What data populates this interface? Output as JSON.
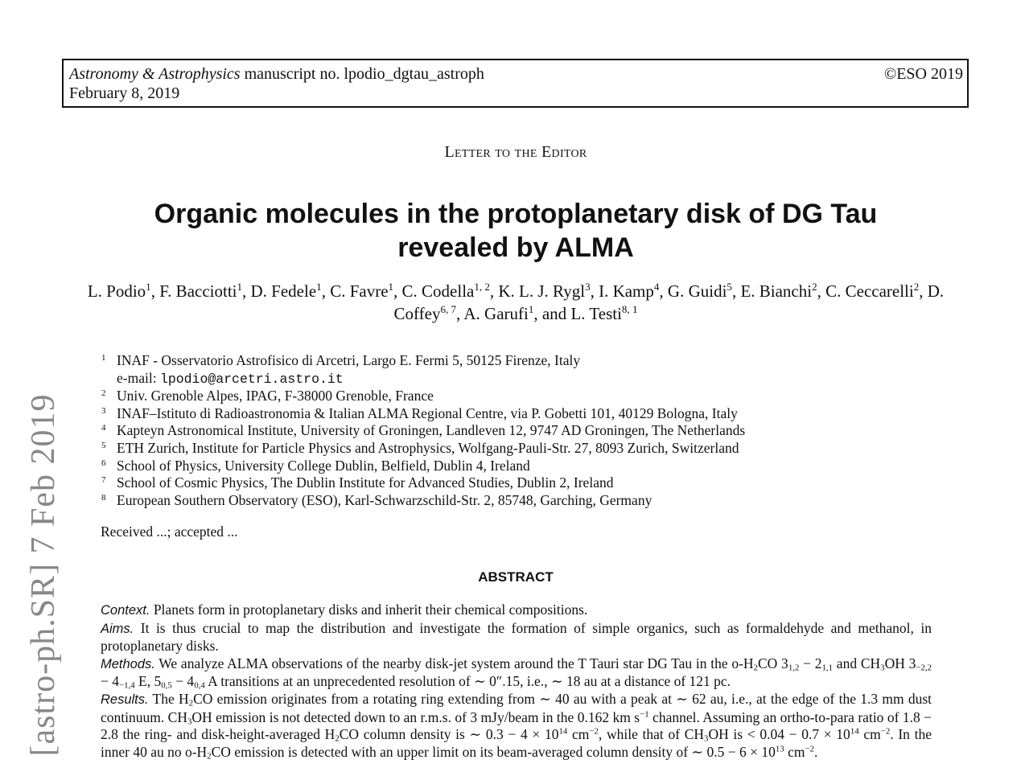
{
  "header": {
    "journal": "Astronomy & Astrophysics",
    "manuscript": " manuscript no. lpodio_dgtau_astroph",
    "date": "February 8, 2019",
    "copyright": "©ESO 2019"
  },
  "letter_label": "Letter to the Editor",
  "title": {
    "line1": "Organic molecules in the protoplanetary disk of DG Tau",
    "line2": "revealed by ALMA"
  },
  "authors": [
    {
      "name": "L. Podio",
      "aff": "1"
    },
    {
      "name": "F. Bacciotti",
      "aff": "1"
    },
    {
      "name": "D. Fedele",
      "aff": "1"
    },
    {
      "name": "C. Favre",
      "aff": "1"
    },
    {
      "name": "C. Codella",
      "aff": "1, 2"
    },
    {
      "name": "K. L. J. Rygl",
      "aff": "3"
    },
    {
      "name": "I. Kamp",
      "aff": "4"
    },
    {
      "name": "G. Guidi",
      "aff": "5"
    },
    {
      "name": "E. Bianchi",
      "aff": "2"
    },
    {
      "name": "C. Ceccarelli",
      "aff": "2"
    },
    {
      "name": "D. Coffey",
      "aff": "6, 7"
    },
    {
      "name": "A. Garufi",
      "aff": "1"
    },
    {
      "name": "L. Testi",
      "aff": "8, 1"
    }
  ],
  "author_connector": "and",
  "affiliations": [
    {
      "num": "1",
      "text": "INAF - Osservatorio Astrofisico di Arcetri, Largo E. Fermi 5, 50125 Firenze, Italy"
    },
    {
      "num": "",
      "email_label": "e-mail: ",
      "email": "lpodio@arcetri.astro.it"
    },
    {
      "num": "2",
      "text": "Univ. Grenoble Alpes, IPAG, F-38000 Grenoble, France"
    },
    {
      "num": "3",
      "text": "INAF–Istituto di Radioastronomia & Italian ALMA Regional Centre, via P. Gobetti 101, 40129 Bologna, Italy"
    },
    {
      "num": "4",
      "text": "Kapteyn Astronomical Institute, University of Groningen, Landleven 12, 9747 AD Groningen, The Netherlands"
    },
    {
      "num": "5",
      "text": "ETH Zurich, Institute for Particle Physics and Astrophysics, Wolfgang-Pauli-Str. 27, 8093 Zurich, Switzerland"
    },
    {
      "num": "6",
      "text": "School of Physics, University College Dublin, Belfield, Dublin 4, Ireland"
    },
    {
      "num": "7",
      "text": "School of Cosmic Physics, The Dublin Institute for Advanced Studies, Dublin 2, Ireland"
    },
    {
      "num": "8",
      "text": "European Southern Observatory (ESO), Karl-Schwarzschild-Str. 2, 85748, Garching, Germany"
    }
  ],
  "received": "Received ...; accepted ...",
  "abstract": {
    "heading": "ABSTRACT",
    "context_label": "Context.",
    "context": " Planets form in protoplanetary disks and inherit their chemical compositions.",
    "aims_label": "Aims.",
    "aims": " It is thus crucial to map the distribution and investigate the formation of simple organics, such as formaldehyde and methanol, in protoplanetary disks.",
    "methods_label": "Methods.",
    "methods_a": " We analyze ALMA observations of the nearby disk-jet system around the T Tauri star DG Tau in the o-H",
    "methods_b": "CO 3",
    "methods_c": " − 2",
    "methods_d": " and CH",
    "methods_e": "OH 3",
    "methods_f": " − 4",
    "methods_g": " E, 5",
    "methods_h": " − 4",
    "methods_i": " A transitions at an unprecedented resolution of ∼ 0″.15, i.e., ∼ 18 au at a distance of 121 pc.",
    "results_label": "Results.",
    "results_a": " The H",
    "results_b": "CO emission originates from a rotating ring extending from ∼ 40 au with a peak at ∼ 62 au, i.e., at the edge of the 1.3 mm dust continuum. CH",
    "results_c": "OH emission is not detected down to an r.m.s. of 3 mJy/beam in the 0.162 km s",
    "results_d": "  channel. Assuming an ortho-to-para ratio of 1.8 − 2.8 the ring- and disk-height-averaged H",
    "results_e": "CO column density is ∼ 0.3 − 4 × 10",
    "results_f": " cm",
    "results_g": ", while that of CH",
    "results_h": "OH is < 0.04 − 0.7 × 10",
    "results_i": " cm",
    "results_j": ". In the inner 40 au no o-H",
    "results_k": "CO emission is detected with an upper limit on its beam-averaged column density of ∼ 0.5 − 6 × 10",
    "results_l": " cm",
    "results_m": ".",
    "sub_2": "2",
    "sub_3": "3",
    "sub_12": "1,2",
    "sub_11": "1,1",
    "sub_m22": "−2,2",
    "sub_m14": "−1,4",
    "sub_05": "0,5",
    "sub_04": "0,4",
    "sup_m1": "−1",
    "sup_14": "14",
    "sup_m2": "−2",
    "sup_13": "13"
  },
  "arxiv_stamp": "[astro-ph.SR]  7 Feb 2019"
}
